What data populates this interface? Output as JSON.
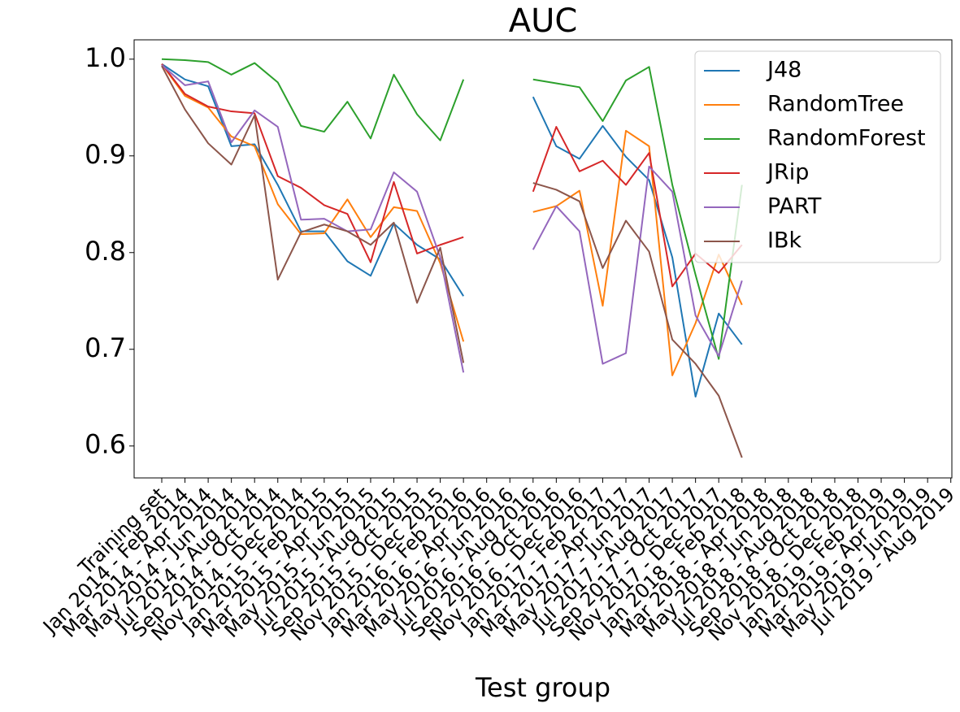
{
  "chart_data": {
    "type": "line",
    "title": "AUC",
    "x_label": "Test group",
    "categories": [
      "Training set",
      "Jan 2014 - Feb 2014",
      "Mar 2014 - Apr 2014",
      "May 2014 - Jun 2014",
      "Jul 2014 - Aug 2014",
      "Sep 2014 - Oct 2014",
      "Nov 2014 - Dec 2014",
      "Jan 2015 - Feb 2015",
      "Mar 2015 - Apr 2015",
      "May 2015 - Jun 2015",
      "Jul 2015 - Aug 2015",
      "Sep 2015 - Oct 2015",
      "Nov 2015 - Dec 2015",
      "Jan 2016 - Feb 2016",
      "Mar 2016 - Apr 2016",
      "May 2016 - Jun 2016",
      "Jul 2016 - Aug 2016",
      "Sep 2016 - Oct 2016",
      "Nov 2016 - Dec 2016",
      "Jan 2017 - Feb 2017",
      "Mar 2017 - Apr 2017",
      "May 2017 - Jun 2017",
      "Jul 2017 - Aug 2017",
      "Sep 2017 - Oct 2017",
      "Nov 2017 - Dec 2017",
      "Jan 2018 - Feb 2018",
      "Mar 2018 - Apr 2018",
      "May 2018 - Jun 2018",
      "Jul 2018 - Aug 2018",
      "Sep 2018 - Oct 2018",
      "Nov 2018 - Dec 2018",
      "Jan 2019 - Feb 2019",
      "Mar 2019 - Apr 2019",
      "May 2019 - Jun 2019",
      "Jul 2019 - Aug 2019"
    ],
    "series": [
      {
        "name": "J48",
        "color": "#1f77b4",
        "values": [
          0.995,
          0.979,
          0.972,
          0.91,
          0.912,
          0.87,
          0.822,
          0.822,
          0.791,
          0.776,
          0.83,
          0.808,
          0.793,
          0.755,
          null,
          null,
          0.961,
          0.91,
          0.897,
          0.931,
          0.899,
          0.875,
          0.795,
          0.651,
          0.737,
          0.705,
          null,
          null,
          null,
          null,
          null,
          null,
          null,
          null,
          null
        ]
      },
      {
        "name": "RandomTree",
        "color": "#ff7f0e",
        "values": [
          0.995,
          0.962,
          0.95,
          0.92,
          0.91,
          0.85,
          0.819,
          0.82,
          0.855,
          0.816,
          0.847,
          0.843,
          0.789,
          0.708,
          null,
          null,
          0.842,
          0.848,
          0.864,
          0.745,
          0.926,
          0.91,
          0.673,
          0.727,
          0.798,
          0.746,
          null,
          null,
          null,
          null,
          null,
          null,
          null,
          null,
          null
        ]
      },
      {
        "name": "RandomForest",
        "color": "#2ca02c",
        "values": [
          1.0,
          0.999,
          0.997,
          0.984,
          0.996,
          0.976,
          0.931,
          0.925,
          0.956,
          0.918,
          0.984,
          0.943,
          0.916,
          0.979,
          null,
          null,
          0.979,
          0.975,
          0.971,
          0.936,
          0.978,
          0.992,
          0.87,
          0.777,
          0.69,
          0.87,
          null,
          null,
          null,
          null,
          null,
          null,
          null,
          null,
          null
        ]
      },
      {
        "name": "JRip",
        "color": "#d62728",
        "values": [
          0.995,
          0.964,
          0.951,
          0.946,
          0.944,
          0.879,
          0.867,
          0.849,
          0.84,
          0.79,
          0.873,
          0.799,
          0.808,
          0.816,
          null,
          null,
          0.863,
          0.93,
          0.884,
          0.895,
          0.87,
          0.903,
          0.765,
          0.799,
          0.779,
          0.808,
          null,
          null,
          null,
          null,
          null,
          null,
          null,
          null,
          null
        ]
      },
      {
        "name": "PART",
        "color": "#9467bd",
        "values": [
          0.994,
          0.973,
          0.977,
          0.914,
          0.947,
          0.93,
          0.834,
          0.835,
          0.822,
          0.824,
          0.883,
          0.863,
          0.795,
          0.676,
          null,
          null,
          0.803,
          0.848,
          0.822,
          0.685,
          0.696,
          0.889,
          0.863,
          0.735,
          0.693,
          0.771,
          null,
          null,
          null,
          null,
          null,
          null,
          null,
          null,
          null
        ]
      },
      {
        "name": "IBk",
        "color": "#8c564b",
        "values": [
          0.993,
          0.948,
          0.913,
          0.891,
          0.942,
          0.772,
          0.821,
          0.829,
          0.822,
          0.808,
          0.831,
          0.748,
          0.805,
          0.686,
          null,
          null,
          0.872,
          0.865,
          0.853,
          0.784,
          0.833,
          0.801,
          0.71,
          0.685,
          0.652,
          0.588,
          null,
          null,
          null,
          null,
          null,
          null,
          null,
          null,
          null
        ]
      }
    ],
    "ylim": [
      0.567,
      1.02
    ],
    "yticks": [
      0.6,
      0.7,
      0.8,
      0.9,
      {
        "value": 1,
        "label": "1.0"
      }
    ],
    "legend": "upper right",
    "grid": false
  }
}
